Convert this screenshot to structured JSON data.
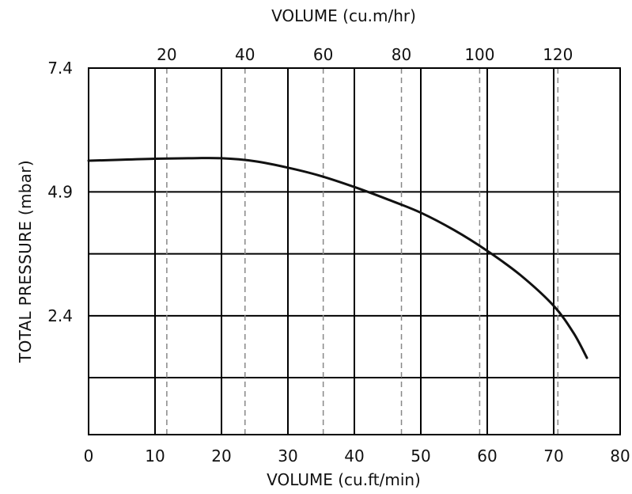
{
  "chart_data": {
    "type": "line",
    "title": "",
    "xlabel": "VOLUME (cu.ft/min)",
    "x2label": "VOLUME (cu.m/hr)",
    "ylabel": "TOTAL PRESSURE  (mbar)",
    "xlim": [
      0,
      80
    ],
    "ylim": [
      0,
      7.4
    ],
    "x_ticks": [
      0,
      10,
      20,
      30,
      40,
      50,
      60,
      70,
      80
    ],
    "x_tick_labels": [
      "0",
      "10",
      "20",
      "30",
      "40",
      "50",
      "60",
      "70",
      "80"
    ],
    "x2_ticks": [
      20,
      40,
      60,
      80,
      100,
      120
    ],
    "x2_tick_labels": [
      "20",
      "40",
      "60",
      "80",
      "100",
      "120"
    ],
    "y_ticks": [
      2.4,
      4.9,
      7.4
    ],
    "y_tick_labels": [
      "2.4",
      "4.9",
      "7.4"
    ],
    "grid": true,
    "series": [
      {
        "x": [
          0,
          5,
          10,
          15,
          20,
          25,
          30,
          35,
          40,
          45,
          50,
          55,
          60,
          65,
          70,
          73,
          75
        ],
        "y": [
          5.53,
          5.55,
          5.57,
          5.58,
          5.58,
          5.52,
          5.39,
          5.22,
          5.0,
          4.75,
          4.48,
          4.13,
          3.71,
          3.22,
          2.6,
          2.05,
          1.55
        ]
      }
    ]
  }
}
